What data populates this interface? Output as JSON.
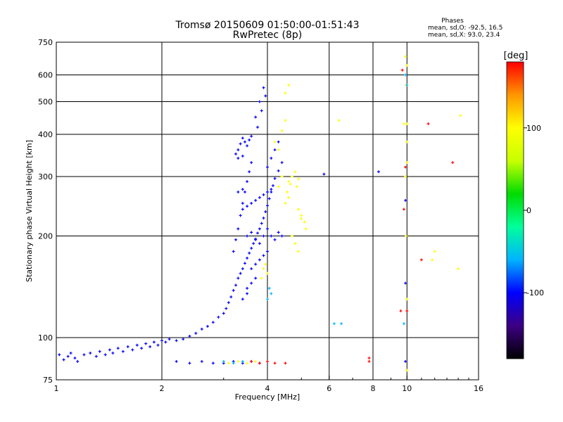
{
  "chart_data": {
    "type": "scatter",
    "title": "Tromsø 20150609 01:50:00-01:51:43",
    "subtitle": "RwPretec (8p)",
    "xlabel": "Frequency [MHz]",
    "ylabel": "Stationary phase Virtual Height [km]",
    "x_scale": "log",
    "y_scale": "log",
    "xlim": [
      1,
      16
    ],
    "ylim": [
      75,
      750
    ],
    "x_ticks": [
      1,
      2,
      4,
      6,
      8,
      10,
      16
    ],
    "x_tick_labels": [
      "1",
      "2",
      "4",
      "6",
      "8",
      "10",
      "16"
    ],
    "y_ticks": [
      75,
      100,
      200,
      300,
      400,
      500,
      600,
      750
    ],
    "y_tick_labels": [
      "75",
      "100",
      "200",
      "300",
      "400",
      "500",
      "600",
      "750"
    ],
    "grid": true,
    "phase_info": {
      "heading": "Phases",
      "line_o": "mean, sd,O: -92.5, 16.5",
      "line_x": "mean, sd,X:  93.0, 23.4"
    },
    "colorbar": {
      "label": "[deg]",
      "range": [
        -180,
        180
      ],
      "ticks": [
        100,
        0,
        -100
      ],
      "tick_labels": [
        "100",
        "0",
        "-100"
      ],
      "colors": [
        "#000000",
        "#3c0082",
        "#0000ff",
        "#00b4ff",
        "#00ff9c",
        "#00dc00",
        "#c8ff00",
        "#ffff00",
        "#ff9600",
        "#ff0000"
      ]
    },
    "series": [
      {
        "points": [
          [
            1.02,
            89
          ],
          [
            1.05,
            86
          ],
          [
            1.08,
            88
          ],
          [
            1.1,
            90
          ],
          [
            1.13,
            87
          ],
          [
            1.15,
            85
          ],
          [
            1.2,
            89
          ],
          [
            1.25,
            90
          ],
          [
            1.3,
            88
          ],
          [
            1.33,
            91
          ],
          [
            1.38,
            89
          ],
          [
            1.42,
            92
          ],
          [
            1.45,
            90
          ],
          [
            1.5,
            93
          ],
          [
            1.55,
            91
          ],
          [
            1.6,
            94
          ],
          [
            1.65,
            92
          ],
          [
            1.7,
            95
          ],
          [
            1.75,
            93
          ],
          [
            1.8,
            96
          ],
          [
            1.85,
            94
          ],
          [
            1.9,
            97
          ],
          [
            1.95,
            95
          ],
          [
            2.0,
            98
          ],
          [
            2.05,
            97
          ],
          [
            2.1,
            99
          ],
          [
            2.2,
            98
          ],
          [
            2.3,
            99
          ],
          [
            2.4,
            101
          ],
          [
            2.5,
            103
          ],
          [
            2.6,
            106
          ],
          [
            2.7,
            108
          ],
          [
            2.8,
            111
          ],
          [
            2.9,
            115
          ],
          [
            3.0,
            118
          ],
          [
            3.05,
            122
          ],
          [
            3.1,
            127
          ],
          [
            3.15,
            132
          ],
          [
            3.2,
            138
          ],
          [
            3.25,
            143
          ],
          [
            3.3,
            150
          ],
          [
            3.35,
            155
          ],
          [
            3.4,
            160
          ],
          [
            3.45,
            166
          ],
          [
            3.5,
            172
          ],
          [
            3.55,
            178
          ],
          [
            3.6,
            184
          ],
          [
            3.65,
            190
          ],
          [
            3.7,
            196
          ],
          [
            3.75,
            204
          ],
          [
            3.8,
            210
          ],
          [
            3.85,
            218
          ],
          [
            3.9,
            226
          ],
          [
            3.95,
            236
          ],
          [
            4.0,
            246
          ],
          [
            4.05,
            258
          ],
          [
            4.1,
            270
          ],
          [
            4.15,
            282
          ],
          [
            4.2,
            296
          ],
          [
            4.3,
            312
          ],
          [
            4.4,
            330
          ],
          [
            3.2,
            180
          ],
          [
            3.25,
            195
          ],
          [
            3.3,
            210
          ],
          [
            3.35,
            230
          ],
          [
            3.4,
            250
          ],
          [
            3.45,
            270
          ],
          [
            3.5,
            290
          ],
          [
            3.55,
            310
          ],
          [
            3.6,
            330
          ],
          [
            3.3,
            360
          ],
          [
            3.35,
            375
          ],
          [
            3.4,
            390
          ],
          [
            3.45,
            380
          ],
          [
            3.5,
            370
          ],
          [
            3.55,
            385
          ],
          [
            3.6,
            395
          ],
          [
            3.25,
            350
          ],
          [
            3.3,
            340
          ],
          [
            3.4,
            345
          ],
          [
            3.5,
            200
          ],
          [
            3.6,
            205
          ],
          [
            3.7,
            195
          ],
          [
            3.8,
            190
          ],
          [
            3.9,
            200
          ],
          [
            4.0,
            210
          ],
          [
            4.1,
            200
          ],
          [
            4.2,
            195
          ],
          [
            4.3,
            205
          ],
          [
            4.4,
            200
          ],
          [
            3.4,
            240
          ],
          [
            3.5,
            245
          ],
          [
            3.6,
            250
          ],
          [
            3.7,
            255
          ],
          [
            3.8,
            260
          ],
          [
            3.9,
            265
          ],
          [
            4.0,
            270
          ],
          [
            4.1,
            275
          ],
          [
            3.3,
            270
          ],
          [
            3.4,
            275
          ],
          [
            3.6,
            160
          ],
          [
            3.7,
            165
          ],
          [
            3.8,
            170
          ],
          [
            3.9,
            175
          ],
          [
            4.0,
            180
          ],
          [
            3.5,
            140
          ],
          [
            3.6,
            145
          ],
          [
            3.7,
            150
          ],
          [
            3.4,
            130
          ],
          [
            3.5,
            135
          ],
          [
            3.7,
            450
          ],
          [
            3.8,
            500
          ],
          [
            3.9,
            550
          ],
          [
            3.95,
            520
          ],
          [
            3.85,
            470
          ],
          [
            3.75,
            420
          ],
          [
            4.0,
            320
          ],
          [
            4.1,
            340
          ],
          [
            4.2,
            360
          ],
          [
            4.3,
            380
          ],
          [
            3.0,
            84
          ],
          [
            3.2,
            85
          ],
          [
            3.4,
            84
          ],
          [
            3.6,
            85
          ],
          [
            3.8,
            84
          ],
          [
            2.6,
            85
          ],
          [
            2.8,
            84
          ],
          [
            2.2,
            85
          ],
          [
            2.4,
            84
          ],
          [
            9.9,
            255
          ],
          [
            9.9,
            145
          ],
          [
            9.9,
            85
          ],
          [
            8.3,
            310
          ],
          [
            5.8,
            305
          ]
        ]
      },
      {
        "points": [
          [
            3.0,
            85
          ],
          [
            3.1,
            84
          ],
          [
            3.3,
            85
          ],
          [
            3.5,
            84
          ],
          [
            3.7,
            85
          ],
          [
            3.9,
            160
          ],
          [
            3.95,
            165
          ],
          [
            4.0,
            155
          ],
          [
            3.85,
            150
          ],
          [
            4.6,
            290
          ],
          [
            4.7,
            300
          ],
          [
            4.8,
            310
          ],
          [
            4.85,
            280
          ],
          [
            4.9,
            295
          ],
          [
            4.55,
            270
          ],
          [
            4.65,
            285
          ],
          [
            5.0,
            230
          ],
          [
            5.1,
            220
          ],
          [
            5.15,
            210
          ],
          [
            4.9,
            240
          ],
          [
            5.0,
            225
          ],
          [
            4.8,
            190
          ],
          [
            4.9,
            180
          ],
          [
            4.7,
            200
          ],
          [
            4.5,
            250
          ],
          [
            4.6,
            260
          ],
          [
            4.4,
            300
          ],
          [
            4.3,
            280
          ],
          [
            4.2,
            380
          ],
          [
            4.3,
            360
          ],
          [
            4.4,
            410
          ],
          [
            4.5,
            440
          ],
          [
            4.6,
            560
          ],
          [
            4.5,
            530
          ],
          [
            9.9,
            680
          ],
          [
            10.0,
            640
          ],
          [
            9.95,
            560
          ],
          [
            10.0,
            430
          ],
          [
            10.0,
            380
          ],
          [
            10.0,
            330
          ],
          [
            9.9,
            300
          ],
          [
            9.95,
            200
          ],
          [
            10.0,
            130
          ],
          [
            10.0,
            80
          ],
          [
            11.8,
            170
          ],
          [
            12.0,
            180
          ],
          [
            6.4,
            440
          ],
          [
            9.8,
            430
          ],
          [
            14.0,
            160
          ],
          [
            14.2,
            455
          ]
        ]
      },
      {
        "points": [
          [
            3.6,
            85
          ],
          [
            3.8,
            84
          ],
          [
            4.0,
            85
          ],
          [
            4.2,
            84
          ],
          [
            4.5,
            84
          ],
          [
            7.8,
            87
          ],
          [
            7.8,
            85
          ],
          [
            9.9,
            320
          ],
          [
            9.8,
            240
          ],
          [
            11.5,
            430
          ],
          [
            13.5,
            330
          ],
          [
            11.0,
            170
          ],
          [
            10.0,
            120
          ],
          [
            9.7,
            620
          ],
          [
            9.6,
            120
          ]
        ]
      },
      {
        "points": [
          [
            3.0,
            85
          ],
          [
            3.2,
            84
          ],
          [
            3.4,
            85
          ],
          [
            4.0,
            130
          ],
          [
            4.1,
            135
          ],
          [
            4.05,
            140
          ],
          [
            6.5,
            110
          ],
          [
            9.8,
            110
          ],
          [
            9.9,
            600
          ],
          [
            10.0,
            560
          ],
          [
            6.2,
            110
          ]
        ]
      }
    ]
  }
}
